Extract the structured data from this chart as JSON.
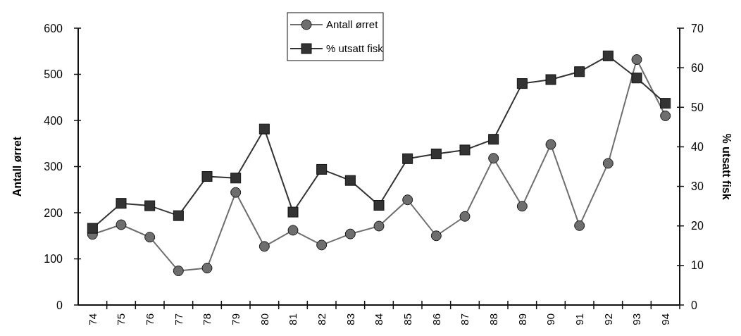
{
  "chart_data": {
    "type": "line",
    "categories": [
      "74",
      "75",
      "76",
      "77",
      "78",
      "79",
      "80",
      "81",
      "82",
      "83",
      "84",
      "85",
      "86",
      "87",
      "88",
      "89",
      "90",
      "91",
      "92",
      "93",
      "94"
    ],
    "ylabel": "Antall ørret",
    "y2label": "% utsatt fisk",
    "ylim": [
      0,
      600
    ],
    "yticks": [
      0,
      100,
      200,
      300,
      400,
      500,
      600
    ],
    "y2lim": [
      0,
      70
    ],
    "y2ticks": [
      0,
      10,
      20,
      30,
      40,
      50,
      60,
      70
    ],
    "legend": "top",
    "grid": false,
    "series": [
      {
        "name": "Antall ørret",
        "color": "#6e6e6e",
        "marker": "circle",
        "values": [
          153,
          174,
          147,
          74,
          80,
          244,
          127,
          162,
          130,
          154,
          171,
          228,
          150,
          192,
          318,
          214,
          348,
          172,
          307,
          532,
          410
        ]
      },
      {
        "name": "% utsatt fisk",
        "color": "#333333",
        "marker": "square",
        "axis": "y2",
        "values": [
          19.4,
          25.7,
          25.1,
          22.6,
          32.5,
          32.1,
          44.5,
          23.5,
          34.3,
          31.5,
          25.2,
          37,
          38.2,
          39.2,
          41.9,
          56,
          57,
          59,
          63,
          57.4,
          51
        ]
      }
    ]
  }
}
